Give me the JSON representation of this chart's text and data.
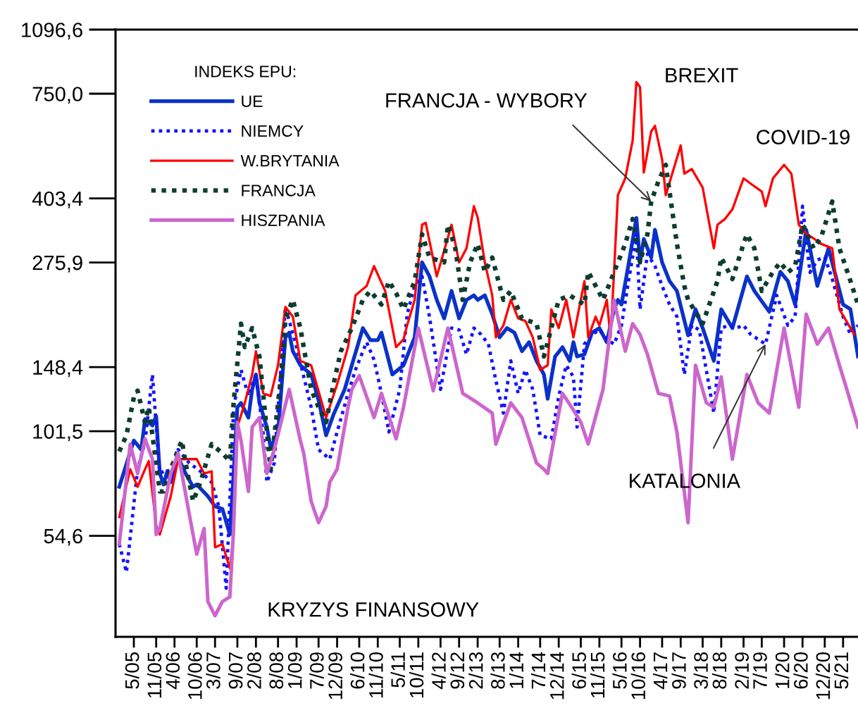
{
  "chart_data": {
    "type": "line",
    "log": true,
    "legend": "top left",
    "legend_title": "INDEKS EPU:",
    "xlim": [
      "2004-12",
      "2021-09"
    ],
    "xticks": [
      {
        "value": "2005-05",
        "label": "5/05"
      },
      {
        "value": "2005-11",
        "label": "11/05"
      },
      {
        "value": "2006-04",
        "label": "4/06"
      },
      {
        "value": "2006-10",
        "label": "10/06"
      },
      {
        "value": "2007-03",
        "label": "3/07"
      },
      {
        "value": "2007-09",
        "label": "9/07"
      },
      {
        "value": "2008-02",
        "label": "2/08"
      },
      {
        "value": "2008-08",
        "label": "8/08"
      },
      {
        "value": "2009-01",
        "label": "1/09"
      },
      {
        "value": "2009-07",
        "label": "7/09"
      },
      {
        "value": "2009-12",
        "label": "12/09"
      },
      {
        "value": "2010-06",
        "label": "6/10"
      },
      {
        "value": "2010-11",
        "label": "11/10"
      },
      {
        "value": "2011-05",
        "label": "5/11"
      },
      {
        "value": "2011-10",
        "label": "10/11"
      },
      {
        "value": "2012-04",
        "label": "4/12"
      },
      {
        "value": "2012-09",
        "label": "9/12"
      },
      {
        "value": "2013-02",
        "label": "2/13"
      },
      {
        "value": "2013-08",
        "label": "8/13"
      },
      {
        "value": "2014-01",
        "label": "1/14"
      },
      {
        "value": "2014-07",
        "label": "7/14"
      },
      {
        "value": "2014-12",
        "label": "12/14"
      },
      {
        "value": "2015-06",
        "label": "6/15"
      },
      {
        "value": "2015-11",
        "label": "11/15"
      },
      {
        "value": "2016-05",
        "label": "5/16"
      },
      {
        "value": "2016-10",
        "label": "10/16"
      },
      {
        "value": "2017-04",
        "label": "4/17"
      },
      {
        "value": "2017-09",
        "label": "9/17"
      },
      {
        "value": "2018-03",
        "label": "3/18"
      },
      {
        "value": "2018-08",
        "label": "8/18"
      },
      {
        "value": "2019-02",
        "label": "2/19"
      },
      {
        "value": "2019-07",
        "label": "7/19"
      },
      {
        "value": "2020-01",
        "label": "1/20"
      },
      {
        "value": "2020-06",
        "label": "6/20"
      },
      {
        "value": "2020-12",
        "label": "12/20"
      },
      {
        "value": "2021-05",
        "label": "5/21"
      }
    ],
    "ylim": [
      30,
      1096.6
    ],
    "yticks": [
      {
        "value": 54.6,
        "label": "54,6"
      },
      {
        "value": 101.5,
        "label": "101,5"
      },
      {
        "value": 148.4,
        "label": "148,4"
      },
      {
        "value": 275.9,
        "label": "275,9"
      },
      {
        "value": 403.4,
        "label": "403,4"
      },
      {
        "value": 750.0,
        "label": "750,0"
      },
      {
        "value": 1096.6,
        "label": "1096,6"
      }
    ],
    "series": [
      {
        "name": "UE",
        "color": "#0a32c8",
        "line_style": "solid",
        "x": [
          "2005-01",
          "2005-05",
          "2005-07",
          "2005-08",
          "2005-10",
          "2005-11",
          "2005-12",
          "2006-01",
          "2006-02",
          "2006-03",
          "2006-05",
          "2006-07",
          "2006-09",
          "2006-10",
          "2007-01",
          "2007-03",
          "2007-05",
          "2007-07",
          "2007-08",
          "2007-09",
          "2007-10",
          "2007-12",
          "2008-01",
          "2008-02",
          "2008-03",
          "2008-05",
          "2008-06",
          "2008-08",
          "2008-10",
          "2008-11",
          "2008-12",
          "2009-02",
          "2009-05",
          "2009-07",
          "2009-09",
          "2009-11",
          "2010-02",
          "2010-04",
          "2010-07",
          "2010-09",
          "2010-11",
          "2010-12",
          "2011-03",
          "2011-06",
          "2011-09",
          "2011-11",
          "2012-01",
          "2012-03",
          "2012-05",
          "2012-07",
          "2012-09",
          "2012-11",
          "2013-01",
          "2013-02",
          "2013-04",
          "2013-06",
          "2013-08",
          "2013-10",
          "2013-12",
          "2014-02",
          "2014-04",
          "2014-06",
          "2014-08",
          "2014-09",
          "2014-11",
          "2015-01",
          "2015-03",
          "2015-04",
          "2015-05",
          "2015-07",
          "2015-09",
          "2015-11",
          "2016-01",
          "2016-03",
          "2016-04",
          "2016-05",
          "2016-07",
          "2016-09",
          "2016-10",
          "2016-11",
          "2017-01",
          "2017-02",
          "2017-04",
          "2017-06",
          "2017-08",
          "2017-11",
          "2018-01",
          "2018-03",
          "2018-06",
          "2018-08",
          "2018-11",
          "2019-03",
          "2019-05",
          "2019-09",
          "2019-12",
          "2020-02",
          "2020-04",
          "2020-07",
          "2020-08",
          "2020-10",
          "2021-01",
          "2021-05",
          "2021-07",
          "2021-09"
        ],
        "values": [
          73,
          96,
          91,
          109,
          105,
          111,
          79,
          74,
          80,
          75,
          87,
          79,
          73,
          74,
          69,
          65,
          64,
          55,
          79,
          117,
          120,
          110,
          130,
          142,
          120,
          104,
          92,
          101,
          177,
          182,
          163,
          150,
          142,
          122,
          99,
          112,
          130,
          150,
          187,
          174,
          174,
          182,
          142,
          150,
          177,
          276,
          254,
          221,
          198,
          233,
          198,
          221,
          227,
          221,
          227,
          203,
          177,
          187,
          182,
          163,
          172,
          154,
          142,
          123,
          158,
          167,
          154,
          172,
          158,
          160,
          182,
          187,
          172,
          209,
          221,
          215,
          276,
          359,
          276,
          317,
          284,
          335,
          276,
          247,
          233,
          179,
          209,
          187,
          154,
          209,
          187,
          254,
          233,
          206,
          261,
          247,
          215,
          335,
          300,
          240,
          300,
          215,
          209,
          158
        ]
      },
      {
        "name": "NIEMCY",
        "color": "#1414ff",
        "line_style": "dotted",
        "x": [
          "2005-01",
          "2005-03",
          "2005-06",
          "2005-08",
          "2005-10",
          "2005-12",
          "2006-02",
          "2006-03",
          "2006-05",
          "2006-08",
          "2006-11",
          "2007-02",
          "2007-04",
          "2007-06",
          "2007-08",
          "2007-10",
          "2007-12",
          "2008-02",
          "2008-04",
          "2008-05",
          "2008-07",
          "2008-09",
          "2008-10",
          "2009-01",
          "2009-05",
          "2009-07",
          "2009-10",
          "2009-12",
          "2010-03",
          "2010-05",
          "2010-08",
          "2010-10",
          "2010-12",
          "2011-02",
          "2011-05",
          "2011-07",
          "2011-09",
          "2011-11",
          "2012-01",
          "2012-04",
          "2012-07",
          "2012-09",
          "2012-11",
          "2013-01",
          "2013-03",
          "2013-05",
          "2013-07",
          "2013-09",
          "2013-11",
          "2014-01",
          "2014-03",
          "2014-05",
          "2014-07",
          "2014-10",
          "2014-12",
          "2015-02",
          "2015-04",
          "2015-05",
          "2015-07",
          "2015-09",
          "2015-11",
          "2016-01",
          "2016-03",
          "2016-05",
          "2016-07",
          "2016-09",
          "2016-10",
          "2016-12",
          "2017-02",
          "2017-04",
          "2017-06",
          "2017-08",
          "2017-10",
          "2017-12",
          "2018-02",
          "2018-06",
          "2018-08",
          "2018-10",
          "2018-12",
          "2019-02",
          "2019-04",
          "2019-06",
          "2019-08",
          "2019-11",
          "2020-02",
          "2020-04",
          "2020-06",
          "2020-08",
          "2020-10",
          "2020-12",
          "2021-02",
          "2021-05",
          "2021-07",
          "2021-09"
        ],
        "values": [
          52,
          44,
          81,
          95,
          142,
          79,
          81,
          75,
          91,
          84,
          80,
          75,
          65,
          40,
          117,
          146,
          125,
          142,
          100,
          75,
          84,
          158,
          212,
          167,
          117,
          91,
          86,
          101,
          127,
          146,
          172,
          155,
          127,
          101,
          130,
          203,
          240,
          254,
          200,
          130,
          187,
          185,
          160,
          187,
          180,
          170,
          137,
          113,
          154,
          127,
          146,
          130,
          99,
          97,
          125,
          150,
          140,
          104,
          170,
          180,
          185,
          175,
          170,
          190,
          250,
          325,
          209,
          290,
          270,
          240,
          215,
          200,
          142,
          190,
          185,
          113,
          187,
          190,
          187,
          190,
          180,
          175,
          170,
          227,
          190,
          200,
          385,
          260,
          280,
          285,
          250,
          200,
          180,
          190
        ]
      },
      {
        "name": "W.BRYTANIA",
        "color": "#ff0000",
        "line_style": "solid",
        "x": [
          "2005-01",
          "2005-04",
          "2005-06",
          "2005-08",
          "2005-09",
          "2005-11",
          "2005-12",
          "2006-03",
          "2006-05",
          "2006-10",
          "2006-12",
          "2007-02",
          "2007-03",
          "2007-05",
          "2007-07",
          "2007-08",
          "2007-09",
          "2007-11",
          "2008-01",
          "2008-02",
          "2008-04",
          "2008-06",
          "2008-08",
          "2008-10",
          "2008-12",
          "2009-02",
          "2009-05",
          "2009-09",
          "2009-12",
          "2010-03",
          "2010-05",
          "2010-08",
          "2010-10",
          "2011-01",
          "2011-04",
          "2011-06",
          "2011-07",
          "2011-09",
          "2011-11",
          "2011-12",
          "2012-03",
          "2012-07",
          "2012-09",
          "2012-11",
          "2013-01",
          "2013-02",
          "2013-04",
          "2013-06",
          "2013-07",
          "2013-09",
          "2013-11",
          "2014-01",
          "2014-03",
          "2014-05",
          "2014-07",
          "2014-09",
          "2014-10",
          "2014-12",
          "2015-02",
          "2015-04",
          "2015-07",
          "2015-08",
          "2015-10",
          "2015-11",
          "2016-01",
          "2016-02",
          "2016-03",
          "2016-04",
          "2016-06",
          "2016-08",
          "2016-09",
          "2016-10",
          "2016-11",
          "2017-01",
          "2017-02",
          "2017-04",
          "2017-05",
          "2017-09",
          "2017-10",
          "2017-12",
          "2018-03",
          "2018-06",
          "2018-07",
          "2018-09",
          "2018-11",
          "2019-02",
          "2019-04",
          "2019-07",
          "2019-08",
          "2019-10",
          "2020-01",
          "2020-03",
          "2020-05",
          "2020-07",
          "2020-09",
          "2020-11",
          "2021-02",
          "2021-04",
          "2021-07",
          "2021-08"
        ],
        "values": [
          61,
          81,
          73,
          81,
          85,
          58,
          55,
          69,
          86,
          86,
          79,
          80,
          51,
          52,
          45,
          55,
          104,
          120,
          142,
          163,
          127,
          125,
          150,
          212,
          200,
          154,
          150,
          110,
          134,
          167,
          227,
          240,
          270,
          233,
          167,
          175,
          190,
          221,
          345,
          349,
          254,
          345,
          276,
          300,
          385,
          360,
          276,
          227,
          177,
          190,
          221,
          198,
          195,
          177,
          146,
          150,
          209,
          187,
          221,
          177,
          247,
          177,
          200,
          190,
          221,
          177,
          261,
          411,
          454,
          568,
          804,
          780,
          470,
          600,
          620,
          508,
          411,
          552,
          467,
          480,
          430,
          300,
          345,
          357,
          378,
          454,
          440,
          420,
          385,
          454,
          492,
          467,
          345,
          327,
          318,
          308,
          300,
          209,
          187,
          180
        ]
      },
      {
        "name": "FRANCJA",
        "color": "#0d3d30",
        "line_style": "dotted",
        "x": [
          "2005-01",
          "2005-03",
          "2005-05",
          "2005-06",
          "2005-08",
          "2005-09",
          "2005-12",
          "2006-01",
          "2006-03",
          "2006-05",
          "2006-06",
          "2006-07",
          "2006-09",
          "2006-11",
          "2007-02",
          "2007-05",
          "2007-07",
          "2007-08",
          "2007-10",
          "2007-11",
          "2008-01",
          "2008-03",
          "2008-06",
          "2008-09",
          "2008-10",
          "2008-12",
          "2009-02",
          "2009-05",
          "2009-07",
          "2009-09",
          "2009-11",
          "2010-01",
          "2010-04",
          "2010-06",
          "2010-07",
          "2010-09",
          "2010-12",
          "2011-02",
          "2011-04",
          "2011-06",
          "2011-09",
          "2011-11",
          "2012-01",
          "2012-05",
          "2012-06",
          "2012-08",
          "2012-10",
          "2012-12",
          "2013-02",
          "2013-04",
          "2013-06",
          "2013-09",
          "2013-11",
          "2014-02",
          "2014-06",
          "2014-08",
          "2014-10",
          "2014-12",
          "2015-03",
          "2015-07",
          "2015-08",
          "2015-12",
          "2016-02",
          "2016-06",
          "2016-08",
          "2016-10",
          "2016-12",
          "2017-01",
          "2017-03",
          "2017-05",
          "2017-08",
          "2017-10",
          "2017-11",
          "2018-03",
          "2018-07",
          "2018-08",
          "2018-11",
          "2019-02",
          "2019-03",
          "2019-05",
          "2019-07",
          "2019-10",
          "2019-12",
          "2020-02",
          "2020-04",
          "2020-06",
          "2020-09",
          "2020-11",
          "2021-02",
          "2021-04",
          "2021-07",
          "2021-09"
        ],
        "values": [
          90,
          99,
          124,
          129,
          107,
          117,
          71,
          71,
          81,
          91,
          96,
          84,
          67,
          75,
          94,
          89,
          85,
          120,
          192,
          167,
          187,
          158,
          81,
          146,
          198,
          221,
          187,
          130,
          117,
          107,
          134,
          163,
          187,
          209,
          221,
          233,
          215,
          247,
          230,
          209,
          247,
          326,
          284,
          276,
          345,
          300,
          221,
          276,
          308,
          261,
          284,
          221,
          233,
          198,
          192,
          158,
          187,
          221,
          227,
          215,
          261,
          221,
          247,
          308,
          357,
          276,
          326,
          396,
          446,
          492,
          308,
          240,
          221,
          192,
          247,
          284,
          250,
          308,
          326,
          300,
          233,
          261,
          276,
          260,
          270,
          345,
          300,
          320,
          396,
          300,
          247,
          215
        ]
      },
      {
        "name": "HISZPANIA",
        "color": "#cc66cc",
        "line_style": "solid",
        "x": [
          "2005-01",
          "2005-04",
          "2005-06",
          "2005-08",
          "2005-10",
          "2005-11",
          "2005-12",
          "2006-03",
          "2006-05",
          "2006-08",
          "2006-10",
          "2006-12",
          "2007-01",
          "2007-03",
          "2007-05",
          "2007-07",
          "2007-08",
          "2007-09",
          "2007-10",
          "2007-12",
          "2008-01",
          "2008-03",
          "2008-05",
          "2008-07",
          "2008-11",
          "2009-02",
          "2009-03",
          "2009-05",
          "2009-07",
          "2009-09",
          "2009-10",
          "2009-12",
          "2010-03",
          "2010-04",
          "2010-06",
          "2010-10",
          "2010-12",
          "2011-04",
          "2011-06",
          "2011-10",
          "2012-02",
          "2012-06",
          "2012-10",
          "2013-02",
          "2013-06",
          "2013-07",
          "2013-11",
          "2014-02",
          "2014-06",
          "2014-08",
          "2014-09",
          "2015-01",
          "2015-04",
          "2015-06",
          "2015-08",
          "2015-12",
          "2016-03",
          "2016-06",
          "2016-08",
          "2016-10",
          "2016-12",
          "2017-03",
          "2017-06",
          "2017-08",
          "2017-11",
          "2018-01",
          "2018-04",
          "2018-06",
          "2018-08",
          "2018-11",
          "2019-03",
          "2019-06",
          "2019-09",
          "2020-01",
          "2020-05",
          "2020-07",
          "2020-10",
          "2021-01",
          "2021-04",
          "2021-06",
          "2021-09"
        ],
        "values": [
          52,
          94,
          79,
          97,
          86,
          55,
          57,
          79,
          89,
          62,
          49,
          57,
          37,
          34,
          37,
          38,
          57,
          107,
          96,
          71,
          104,
          110,
          79,
          91,
          130,
          96,
          89,
          67,
          59,
          65,
          75,
          81,
          117,
          130,
          141,
          110,
          127,
          97,
          117,
          187,
          129,
          187,
          127,
          120,
          113,
          94,
          120,
          110,
          84,
          81,
          79,
          127,
          115,
          107,
          94,
          130,
          221,
          163,
          192,
          180,
          160,
          127,
          125,
          101,
          59,
          150,
          120,
          117,
          140,
          86,
          142,
          120,
          113,
          187,
          117,
          203,
          170,
          187,
          150,
          130,
          104
        ]
      }
    ],
    "annotations": [
      "BREXIT",
      {
        "text": "FRANCJA - WYBORY",
        "x": "2017-01",
        "y": 396
      },
      "COVID-19",
      {
        "text": "KATALONIA",
        "x": "2019-08",
        "y": 170
      },
      "KRYZYS FINANSOWY"
    ]
  }
}
